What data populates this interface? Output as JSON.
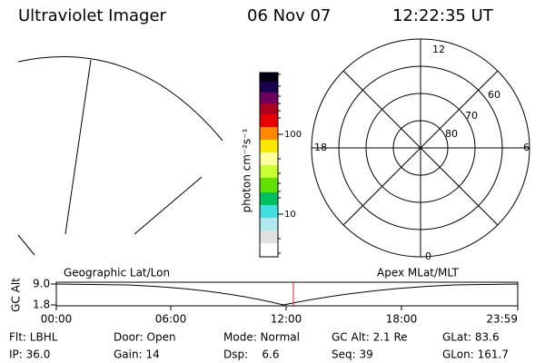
{
  "header": {
    "title": "Ultraviolet Imager",
    "date": "06 Nov 07",
    "time": "12:22:35 UT"
  },
  "colorbar": {
    "label": "photon cm⁻²s⁻¹",
    "ticks": [
      "100",
      "10"
    ]
  },
  "polar": {
    "mlt_labels": [
      "12",
      "18",
      "6",
      "0"
    ],
    "lat_labels": [
      "60",
      "70",
      "80"
    ]
  },
  "timeline": {
    "axis_label": "GC Alt",
    "alt_labels": [
      "9.0",
      "1.8"
    ],
    "left_label": "Geographic Lat/Lon",
    "right_label": "Apex MLat/MLT",
    "time_labels": [
      "00:00",
      "06:00",
      "12:00",
      "18:00",
      "23:59"
    ]
  },
  "footer": {
    "rows": [
      [
        "Flt: LBHL",
        "Door: Open",
        "Mode: Normal",
        "GC Alt: 2.1 Re",
        "GLat: 83.6"
      ],
      [
        "IP: 36.0",
        "Gain: 14",
        "Dsp:    6.6",
        "Seq: 39",
        "GLon: 161.7"
      ]
    ]
  }
}
